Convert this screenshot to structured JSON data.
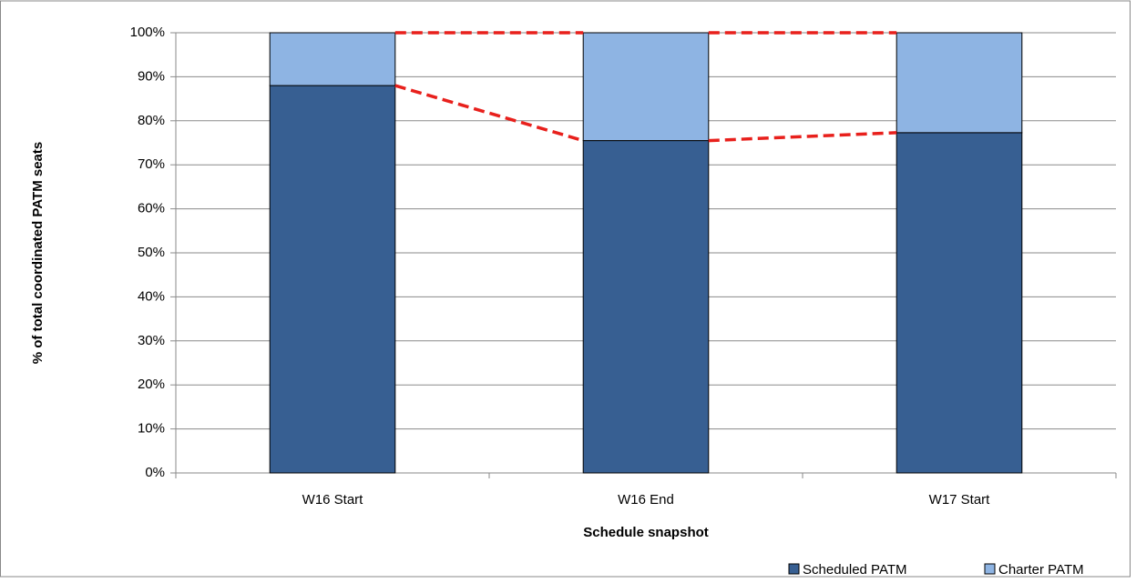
{
  "chart_data": {
    "type": "stacked_bar",
    "x_label": "Schedule snapshot",
    "y_label": "% of total coordinated PATM seats",
    "categories": [
      "W16 Start",
      "W16 End",
      "W17 Start"
    ],
    "series": [
      {
        "name": "Scheduled PATM",
        "color": "#375f92",
        "values": [
          88,
          75.5,
          77.3
        ]
      },
      {
        "name": "Charter PATM",
        "color": "#8eb4e3",
        "values": [
          12,
          24.5,
          22.7
        ]
      }
    ],
    "ylim": [
      0,
      100
    ],
    "yticks": [
      {
        "value": 0,
        "label": "0%"
      },
      {
        "value": 10,
        "label": "10%"
      },
      {
        "value": 20,
        "label": "20%"
      },
      {
        "value": 30,
        "label": "30%"
      },
      {
        "value": 40,
        "label": "40%"
      },
      {
        "value": 50,
        "label": "50%"
      },
      {
        "value": 60,
        "label": "60%"
      },
      {
        "value": 70,
        "label": "70%"
      },
      {
        "value": 80,
        "label": "80%"
      },
      {
        "value": 90,
        "label": "90%"
      },
      {
        "value": 100,
        "label": "100%"
      }
    ],
    "grid": true,
    "legend": "bottom-right",
    "series_lines_color": "#e8201c"
  }
}
